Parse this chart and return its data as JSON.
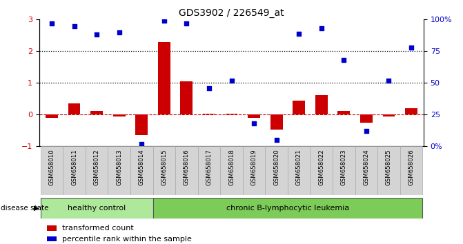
{
  "title": "GDS3902 / 226549_at",
  "samples": [
    "GSM658010",
    "GSM658011",
    "GSM658012",
    "GSM658013",
    "GSM658014",
    "GSM658015",
    "GSM658016",
    "GSM658017",
    "GSM658018",
    "GSM658019",
    "GSM658020",
    "GSM658021",
    "GSM658022",
    "GSM658023",
    "GSM658024",
    "GSM658025",
    "GSM658026"
  ],
  "red_bars": [
    -0.1,
    0.35,
    0.12,
    -0.05,
    -0.65,
    2.28,
    1.05,
    0.04,
    0.04,
    -0.1,
    -0.48,
    0.45,
    0.62,
    0.12,
    -0.25,
    -0.05,
    0.2
  ],
  "blue_pct": [
    97,
    95,
    88,
    90,
    2,
    99,
    97,
    46,
    52,
    18,
    5,
    89,
    93,
    68,
    12,
    52,
    78
  ],
  "ylim_left": [
    -1,
    3
  ],
  "ylim_right": [
    0,
    100
  ],
  "healthy_count": 5,
  "healthy_label": "healthy control",
  "leukemia_label": "chronic B-lymphocytic leukemia",
  "disease_state_label": "disease state",
  "bar_color": "#cc0000",
  "square_color": "#0000cc",
  "zero_line_color": "#cc0000",
  "healthy_color": "#aee89a",
  "leukemia_color": "#7dcc5a",
  "xtick_bg": "#d4d4d4",
  "xtick_edge": "#aaaaaa",
  "legend_red_label": "transformed count",
  "legend_blue_label": "percentile rank within the sample",
  "right_tick_labels": [
    "0%",
    "25",
    "50",
    "75",
    "100%"
  ],
  "right_tick_values": [
    0,
    25,
    50,
    75,
    100
  ]
}
